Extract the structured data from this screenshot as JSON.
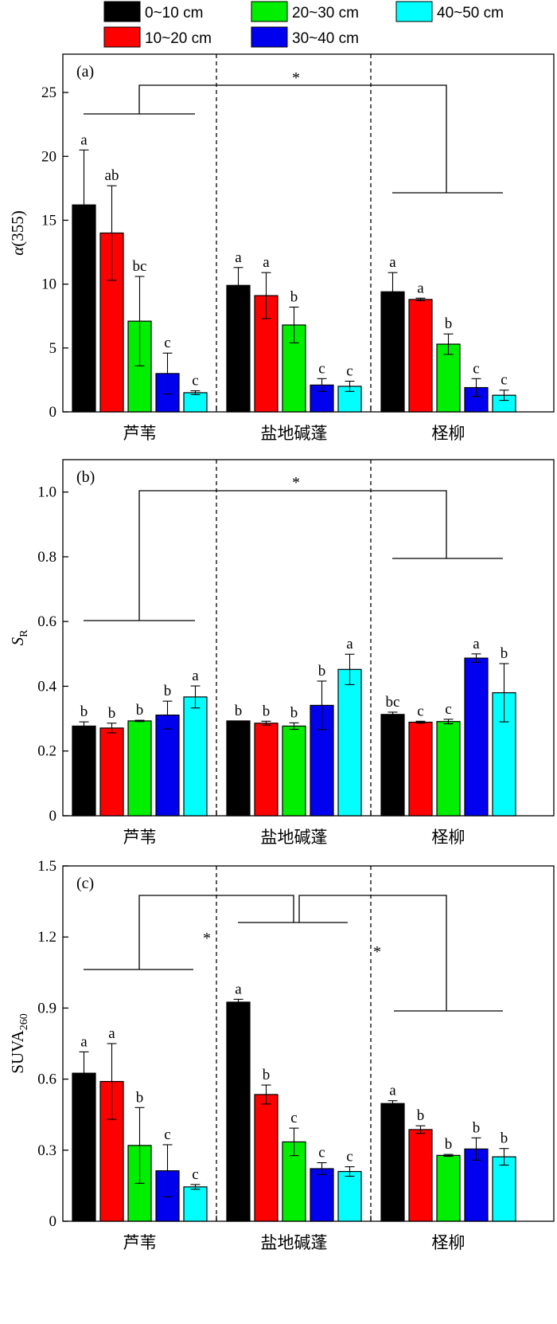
{
  "legend": {
    "items": [
      {
        "label": "0~10 cm",
        "color": "#000000"
      },
      {
        "label": "10~20 cm",
        "color": "#ff0000"
      },
      {
        "label": "20~30 cm",
        "color": "#00ee00"
      },
      {
        "label": "30~40 cm",
        "color": "#0000ee"
      },
      {
        "label": "40~50 cm",
        "color": "#00ffff"
      }
    ]
  },
  "significance_mark": "*",
  "chart_data": [
    {
      "type": "bar",
      "panel_label": "(a)",
      "ylabel_main": "α",
      "ylabel_rest": "(355)",
      "ylim": [
        0,
        28
      ],
      "yticks": [
        0,
        5,
        10,
        15,
        20,
        25
      ],
      "ytick_labels": [
        "0",
        "5",
        "10",
        "15",
        "20",
        "25"
      ],
      "categories": [
        "芦苇",
        "盐地碱蓬",
        "柽柳"
      ],
      "series": [
        {
          "name": "0~10 cm",
          "values": [
            16.2,
            9.9,
            9.4
          ],
          "errors": [
            4.3,
            1.4,
            1.5
          ],
          "letters": [
            "a",
            "a",
            "a"
          ]
        },
        {
          "name": "10~20 cm",
          "values": [
            14.0,
            9.1,
            8.8
          ],
          "errors": [
            3.7,
            1.8,
            0.1
          ],
          "letters": [
            "ab",
            "a",
            "a"
          ]
        },
        {
          "name": "20~30 cm",
          "values": [
            7.1,
            6.8,
            5.3
          ],
          "errors": [
            3.5,
            1.4,
            0.8
          ],
          "letters": [
            "bc",
            "b",
            "b"
          ]
        },
        {
          "name": "30~40 cm",
          "values": [
            3.0,
            2.1,
            1.9
          ],
          "errors": [
            1.6,
            0.5,
            0.7
          ],
          "letters": [
            "c",
            "c",
            "c"
          ]
        },
        {
          "name": "40~50 cm",
          "values": [
            1.5,
            2.0,
            1.3
          ],
          "errors": [
            0.15,
            0.4,
            0.4
          ],
          "letters": [
            "c",
            "c",
            "c"
          ]
        }
      ],
      "grid": false
    },
    {
      "type": "bar",
      "panel_label": "(b)",
      "ylabel_main": "S",
      "ylabel_sub": "R",
      "ylim": [
        0,
        1.1
      ],
      "yticks": [
        0,
        0.2,
        0.4,
        0.6,
        0.8,
        1.0
      ],
      "ytick_labels": [
        "0",
        "0.2",
        "0.4",
        "0.6",
        "0.8",
        "1.0"
      ],
      "categories": [
        "芦苇",
        "盐地碱蓬",
        "柽柳"
      ],
      "series": [
        {
          "name": "0~10 cm",
          "values": [
            0.277,
            0.293,
            0.313
          ],
          "errors": [
            0.013,
            0.0,
            0.007
          ],
          "letters": [
            "b",
            "b",
            "bc"
          ]
        },
        {
          "name": "10~20 cm",
          "values": [
            0.271,
            0.286,
            0.289
          ],
          "errors": [
            0.015,
            0.006,
            0.003
          ],
          "letters": [
            "b",
            "b",
            "c"
          ]
        },
        {
          "name": "20~30 cm",
          "values": [
            0.293,
            0.277,
            0.291
          ],
          "errors": [
            0.002,
            0.01,
            0.007
          ],
          "letters": [
            "b",
            "b",
            "c"
          ]
        },
        {
          "name": "30~40 cm",
          "values": [
            0.311,
            0.341,
            0.487
          ],
          "errors": [
            0.043,
            0.075,
            0.013
          ],
          "letters": [
            "b",
            "b",
            "a"
          ]
        },
        {
          "name": "40~50 cm",
          "values": [
            0.367,
            0.452,
            0.38
          ],
          "errors": [
            0.034,
            0.047,
            0.09
          ],
          "letters": [
            "a",
            "a",
            "b"
          ]
        }
      ],
      "grid": false
    },
    {
      "type": "bar",
      "panel_label": "(c)",
      "ylabel_main": "SUVA",
      "ylabel_sub": "260",
      "ylim": [
        0,
        1.5
      ],
      "yticks": [
        0,
        0.3,
        0.6,
        0.9,
        1.2,
        1.5
      ],
      "ytick_labels": [
        "0",
        "0.3",
        "0.6",
        "0.9",
        "1.2",
        "1.5"
      ],
      "categories": [
        "芦苇",
        "盐地碱蓬",
        "柽柳"
      ],
      "series": [
        {
          "name": "0~10 cm",
          "values": [
            0.625,
            0.925,
            0.497
          ],
          "errors": [
            0.09,
            0.012,
            0.012
          ],
          "letters": [
            "a",
            "a",
            "a"
          ]
        },
        {
          "name": "10~20 cm",
          "values": [
            0.59,
            0.535,
            0.387
          ],
          "errors": [
            0.16,
            0.04,
            0.016
          ],
          "letters": [
            "a",
            "b",
            "b"
          ]
        },
        {
          "name": "20~30 cm",
          "values": [
            0.32,
            0.335,
            0.278
          ],
          "errors": [
            0.16,
            0.058,
            0.004
          ],
          "letters": [
            "b",
            "c",
            "b"
          ]
        },
        {
          "name": "30~40 cm",
          "values": [
            0.213,
            0.222,
            0.305
          ],
          "errors": [
            0.11,
            0.025,
            0.047
          ],
          "letters": [
            "c",
            "c",
            "b"
          ]
        },
        {
          "name": "40~50 cm",
          "values": [
            0.145,
            0.21,
            0.272
          ],
          "errors": [
            0.01,
            0.02,
            0.035
          ],
          "letters": [
            "c",
            "c",
            "b"
          ]
        }
      ],
      "grid": false
    }
  ]
}
